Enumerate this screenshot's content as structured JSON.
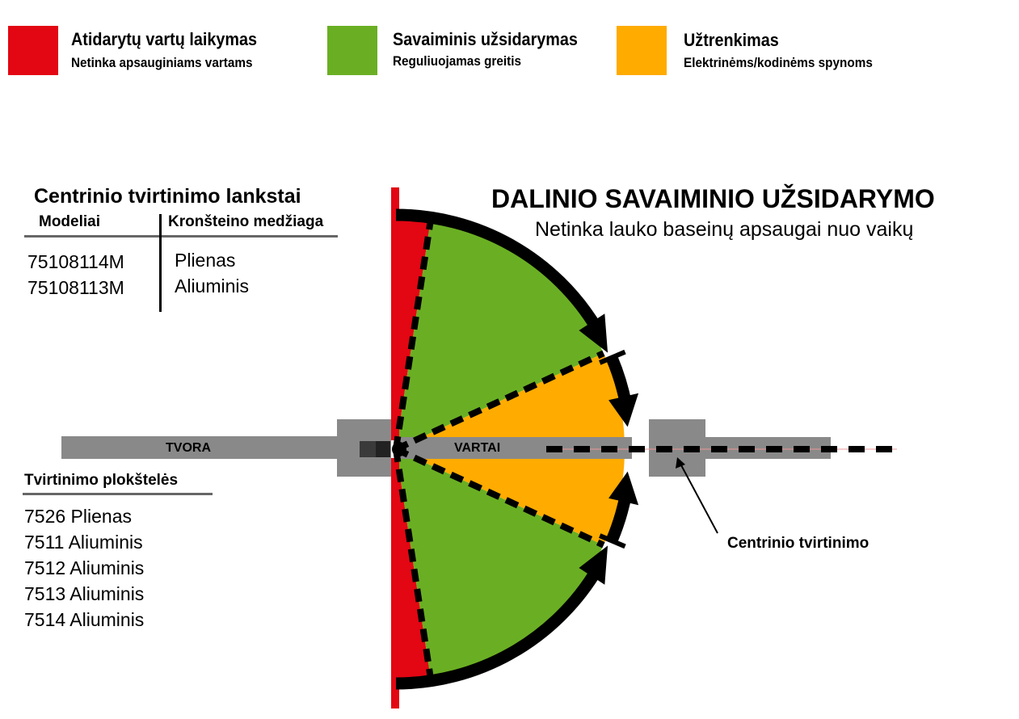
{
  "legend": [
    {
      "title": "Atidarytų vartų laikymas",
      "subtitle": "Netinka apsauginiams vartams",
      "color": "#e30613"
    },
    {
      "title": "Savaiminis užsidarymas",
      "subtitle": "Reguliuojamas greitis",
      "color": "#6aaf23"
    },
    {
      "title": "Užtrenkimas",
      "subtitle": "Elektrinėms/kodinėms spynoms",
      "color": "#ffab00"
    }
  ],
  "heading": {
    "title": "DALINIO SAVAIMINIO UŽSIDARYMO",
    "subtitle": "Netinka lauko baseinų apsaugai nuo vaikų"
  },
  "hinges": {
    "title": "Centrinio tvirtinimo lankstai",
    "headers": [
      "Modeliai",
      "Kronšteino medžiaga"
    ],
    "rows": [
      [
        "75108114M",
        "Plienas"
      ],
      [
        "75108113M",
        "Aliuminis"
      ]
    ]
  },
  "plates": {
    "title": "Tvirtinimo plokštelės",
    "items": [
      "7526 Plienas",
      "7511 Aliuminis",
      "7512 Aliuminis",
      "7513 Aliuminis",
      "7514 Aliuminis"
    ]
  },
  "diagram": {
    "fence_label": "TVORA",
    "gate_label": "VARTAI",
    "center_mount_label": "Centrinio tvirtinimo"
  }
}
